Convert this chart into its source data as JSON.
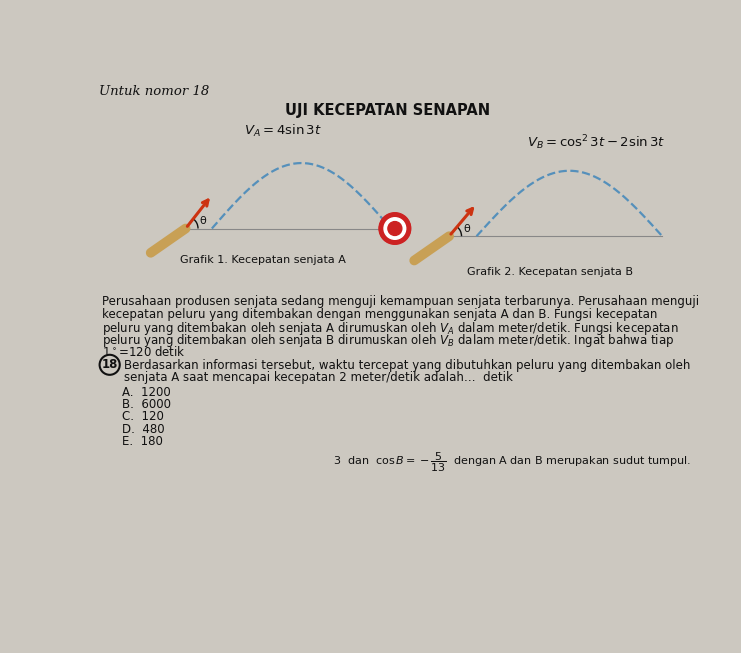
{
  "title_small": "Untuk nomor 18",
  "title_main": "UJI KECEPATAN SENAPAN",
  "formula_A": "$V_A = 4 \\sin 3t$",
  "formula_B": "$V_B = \\cos^2 3t - 2\\sin 3t$",
  "caption_A": "Grafik 1. Kecepatan senjata A",
  "caption_B": "Grafik 2. Kecepatan senjata B",
  "theta": "θ",
  "para_lines": [
    "Perusahaan produsen senjata sedang menguji kemampuan senjata terbarunya. Perusahaan menguji",
    "kecepatan peluru yang ditembakan dengan menggunakan senjata A dan B. Fungsi kecepatan",
    "peluru yang ditembakan oleh senjata A dirumuskan oleh $V_A$ dalam meter/detik. Fungsi kecepatan",
    "peluru yang ditembakan oleh senjata B dirumuskan oleh $V_B$ dalam meter/detik. Ingat bahwa tiap",
    "$1^\\circ$=120 detik"
  ],
  "question_num": "18",
  "q_lines": [
    "Berdasarkan informasi tersebut, waktu tercepat yang dibutuhkan peluru yang ditembakan oleh",
    "senjata A saat mencapai kecepatan 2 meter/detik adalah…  detik"
  ],
  "options": [
    "A.  1200",
    "B.  6000",
    "C.  120",
    "D.  480",
    "E.  180"
  ],
  "footnote_plain": "3  dan  ",
  "footnote_formula": "$\\cos B = -\\dfrac{5}{13}$",
  "footnote_end": "  dengan A dan B merupakan sudut tumpul.",
  "bg_color": "#ccc8c0",
  "text_color": "#111111",
  "arc_color": "#5590bb",
  "arrow_color": "#cc3311",
  "stock_color": "#c8a055",
  "target_outer": "#cc2222",
  "target_mid": "#ffffff"
}
